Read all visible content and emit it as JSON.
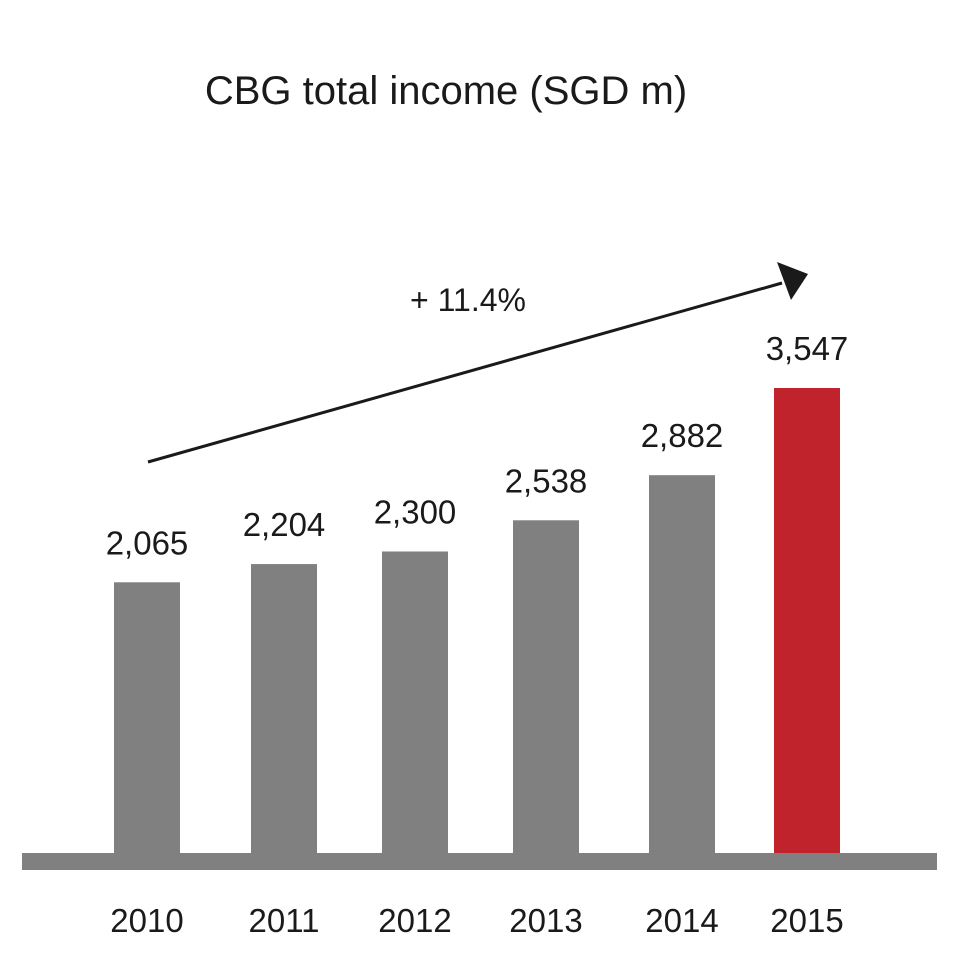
{
  "chart_data": {
    "type": "bar",
    "title": "CBG total income (SGD m)",
    "xlabel": "",
    "ylabel": "",
    "categories": [
      "2010",
      "2011",
      "2012",
      "2013",
      "2014",
      "2015"
    ],
    "values": [
      2065,
      2204,
      2300,
      2538,
      2882,
      3547
    ],
    "value_labels": [
      "2,065",
      "2,204",
      "2,300",
      "2,538",
      "2,882",
      "3,547"
    ],
    "ylim": [
      0,
      3547
    ],
    "grid": false,
    "legend": "none",
    "annotations": {
      "growth_label": "+ 11.4%"
    },
    "colors": {
      "default_bar": "#808080",
      "highlight_bar": "#c0232b",
      "baseline": "#808080",
      "arrow": "#1a1a1a",
      "text": "#1a1a1a"
    },
    "highlight_category": "2015"
  }
}
